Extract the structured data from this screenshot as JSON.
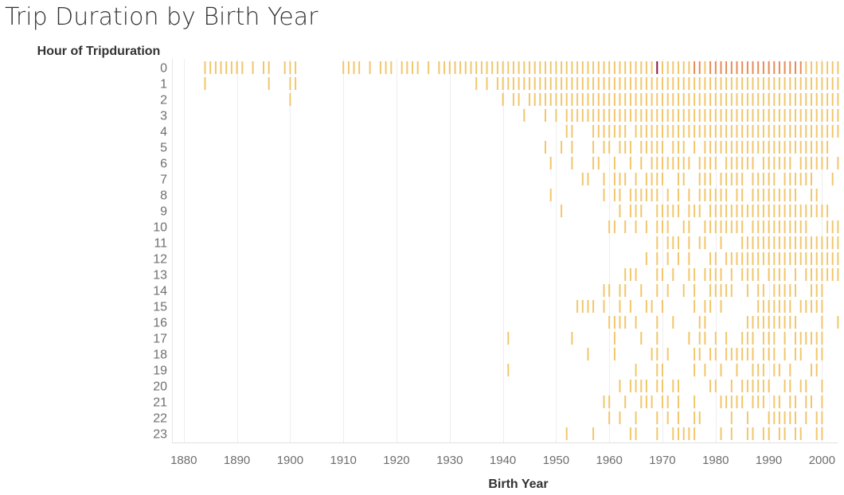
{
  "chart_data": {
    "type": "heatmap",
    "title": "Trip Duration by Birth Year",
    "ylabel": "Hour of Tripduration",
    "xlabel": "Birth Year",
    "x_ticks": [
      1880,
      1890,
      1900,
      1910,
      1920,
      1930,
      1940,
      1950,
      1960,
      1970,
      1980,
      1990,
      2000
    ],
    "xlim": [
      1877,
      2004
    ],
    "grid": true,
    "colors": {
      "low": "#f2c66b",
      "mid": "#e98a54",
      "high": "#8e1346"
    },
    "y_categories": [
      "0",
      "1",
      "2",
      "3",
      "4",
      "5",
      "6",
      "7",
      "8",
      "9",
      "10",
      "11",
      "12",
      "13",
      "14",
      "15",
      "16",
      "17",
      "18",
      "19",
      "20",
      "21",
      "22",
      "23"
    ],
    "rows": [
      {
        "hour": "0",
        "years": [
          "1884-1891",
          "1893",
          "1895-1896",
          "1899-1901",
          "1910-1913",
          "1915",
          "1917-1919",
          "1921-1924",
          "1926",
          "1928-2003"
        ]
      },
      {
        "hour": "1",
        "years": [
          "1884",
          "1896",
          "1900-1901",
          "1935",
          "1937",
          "1939-2003"
        ]
      },
      {
        "hour": "2",
        "years": [
          "1900",
          "1940",
          "1942-1943",
          "1945-2003"
        ]
      },
      {
        "hour": "3",
        "years": [
          "1944",
          "1948",
          "1950",
          "1952-2003"
        ]
      },
      {
        "hour": "4",
        "years": [
          "1952-1953",
          "1957-1963",
          "1965-2003"
        ]
      },
      {
        "hour": "5",
        "years": [
          "1948",
          "1951",
          "1953",
          "1957",
          "1959-1960",
          "1962-1964",
          "1966-1970",
          "1972-1974",
          "1976",
          "1978-2001"
        ]
      },
      {
        "hour": "6",
        "years": [
          "1949",
          "1953",
          "1957-1958",
          "1961",
          "1964",
          "1966",
          "1968-1975",
          "1977-1980",
          "1982-1987",
          "1989-1994",
          "1996-2001",
          "2003"
        ]
      },
      {
        "hour": "7",
        "years": [
          "1955-1956",
          "1959",
          "1961-1963",
          "1965",
          "1967-1970",
          "1973-1974",
          "1977-1979",
          "1981-1985",
          "1987-1991",
          "1993-1998",
          "2002"
        ]
      },
      {
        "hour": "8",
        "years": [
          "1949",
          "1959",
          "1961-1962",
          "1964-1969",
          "1971",
          "1973",
          "1975",
          "1977-1982",
          "1984-1985",
          "1987-1995",
          "1998-1999"
        ]
      },
      {
        "hour": "9",
        "years": [
          "1951",
          "1962",
          "1964-1966",
          "1969-1973",
          "1975-1977",
          "1979-2001"
        ]
      },
      {
        "hour": "10",
        "years": [
          "1960-1961",
          "1963",
          "1965",
          "1967",
          "1969-1971",
          "1974-1975",
          "1978-1985",
          "1987-1997",
          "2001-2003"
        ]
      },
      {
        "hour": "11",
        "years": [
          "1969",
          "1971-1973",
          "1975",
          "1977-1978",
          "1981",
          "1985-2003"
        ]
      },
      {
        "hour": "12",
        "years": [
          "1967",
          "1969",
          "1971",
          "1973",
          "1975",
          "1979-1980",
          "1982-2003"
        ]
      },
      {
        "hour": "13",
        "years": [
          "1963-1965",
          "1969-1970",
          "1972",
          "1975-1976",
          "1978-1981",
          "1983",
          "1985-1988",
          "1990-1993",
          "1995",
          "1997-2003"
        ]
      },
      {
        "hour": "14",
        "years": [
          "1959-1960",
          "1962-1963",
          "1966",
          "1969",
          "1971",
          "1974",
          "1976",
          "1979-1983",
          "1986",
          "1988-1989",
          "1991-1995",
          "1998-2000"
        ]
      },
      {
        "hour": "15",
        "years": [
          "1954-1957",
          "1959",
          "1962",
          "1964",
          "1967-1968",
          "1970",
          "1976",
          "1978-1979",
          "1981",
          "1988-1994",
          "1996-2000"
        ]
      },
      {
        "hour": "16",
        "years": [
          "1960-1963",
          "1965",
          "1969",
          "1972",
          "1977-1978",
          "1986-1995",
          "2000",
          "2003"
        ]
      },
      {
        "hour": "17",
        "years": [
          "1941",
          "1953",
          "1961",
          "1966",
          "1969",
          "1975",
          "1977-1978",
          "1980",
          "1982",
          "1985-1987",
          "1989-1991",
          "1993",
          "1995-2000"
        ]
      },
      {
        "hour": "18",
        "years": [
          "1956",
          "1961",
          "1968-1969",
          "1971",
          "1976-1977",
          "1979-1980",
          "1982-1987",
          "1989-1991",
          "1993",
          "1995-1996",
          "1999-2000"
        ]
      },
      {
        "hour": "19",
        "years": [
          "1941",
          "1965",
          "1969-1970",
          "1976",
          "1978",
          "1981",
          "1984",
          "1987-1989",
          "1991-1992",
          "1994",
          "1998-1999"
        ]
      },
      {
        "hour": "20",
        "years": [
          "1962",
          "1964-1967",
          "1969-1970",
          "1972-1973",
          "1979-1980",
          "1983",
          "1985-1990",
          "1993-1994",
          "1996-1997",
          "2000"
        ]
      },
      {
        "hour": "21",
        "years": [
          "1959-1960",
          "1963",
          "1966-1968",
          "1970-1971",
          "1973",
          "1976",
          "1981-1985",
          "1987-1989",
          "1991-1992",
          "1994-1995",
          "1997-1998",
          "2000"
        ]
      },
      {
        "hour": "22",
        "years": [
          "1960",
          "1962",
          "1965",
          "1969",
          "1971",
          "1973",
          "1976-1977",
          "1983",
          "1986",
          "1990-1995",
          "1997",
          "1999-2000"
        ]
      },
      {
        "hour": "23",
        "years": [
          "1952",
          "1957",
          "1964-1965",
          "1969",
          "1972-1976",
          "1981",
          "1983",
          "1986-1987",
          "1989-1990",
          "1992-1993",
          "1995-1996",
          "1999-2000"
        ]
      }
    ],
    "highlights": [
      {
        "hour": "0",
        "year": 1969,
        "level": "high"
      },
      {
        "hour": "0",
        "year": 1976,
        "level": "mid"
      },
      {
        "hour": "0",
        "year": 1977,
        "level": "mid"
      },
      {
        "hour": "0",
        "year": 1979,
        "level": "mid"
      },
      {
        "hour": "0",
        "year": 1980,
        "level": "mid"
      },
      {
        "hour": "0",
        "year": 1981,
        "level": "mid"
      },
      {
        "hour": "0",
        "year": 1982,
        "level": "mid"
      },
      {
        "hour": "0",
        "year": 1983,
        "level": "mid"
      },
      {
        "hour": "0",
        "year": 1984,
        "level": "mid"
      },
      {
        "hour": "0",
        "year": 1985,
        "level": "mid"
      },
      {
        "hour": "0",
        "year": 1986,
        "level": "mid"
      },
      {
        "hour": "0",
        "year": 1987,
        "level": "mid"
      },
      {
        "hour": "0",
        "year": 1988,
        "level": "mid"
      },
      {
        "hour": "0",
        "year": 1989,
        "level": "mid"
      },
      {
        "hour": "0",
        "year": 1990,
        "level": "mid"
      },
      {
        "hour": "0",
        "year": 1991,
        "level": "mid"
      },
      {
        "hour": "0",
        "year": 1992,
        "level": "mid"
      },
      {
        "hour": "0",
        "year": 1993,
        "level": "mid"
      },
      {
        "hour": "0",
        "year": 1994,
        "level": "mid"
      },
      {
        "hour": "0",
        "year": 1995,
        "level": "mid"
      },
      {
        "hour": "0",
        "year": 1996,
        "level": "mid"
      }
    ]
  }
}
